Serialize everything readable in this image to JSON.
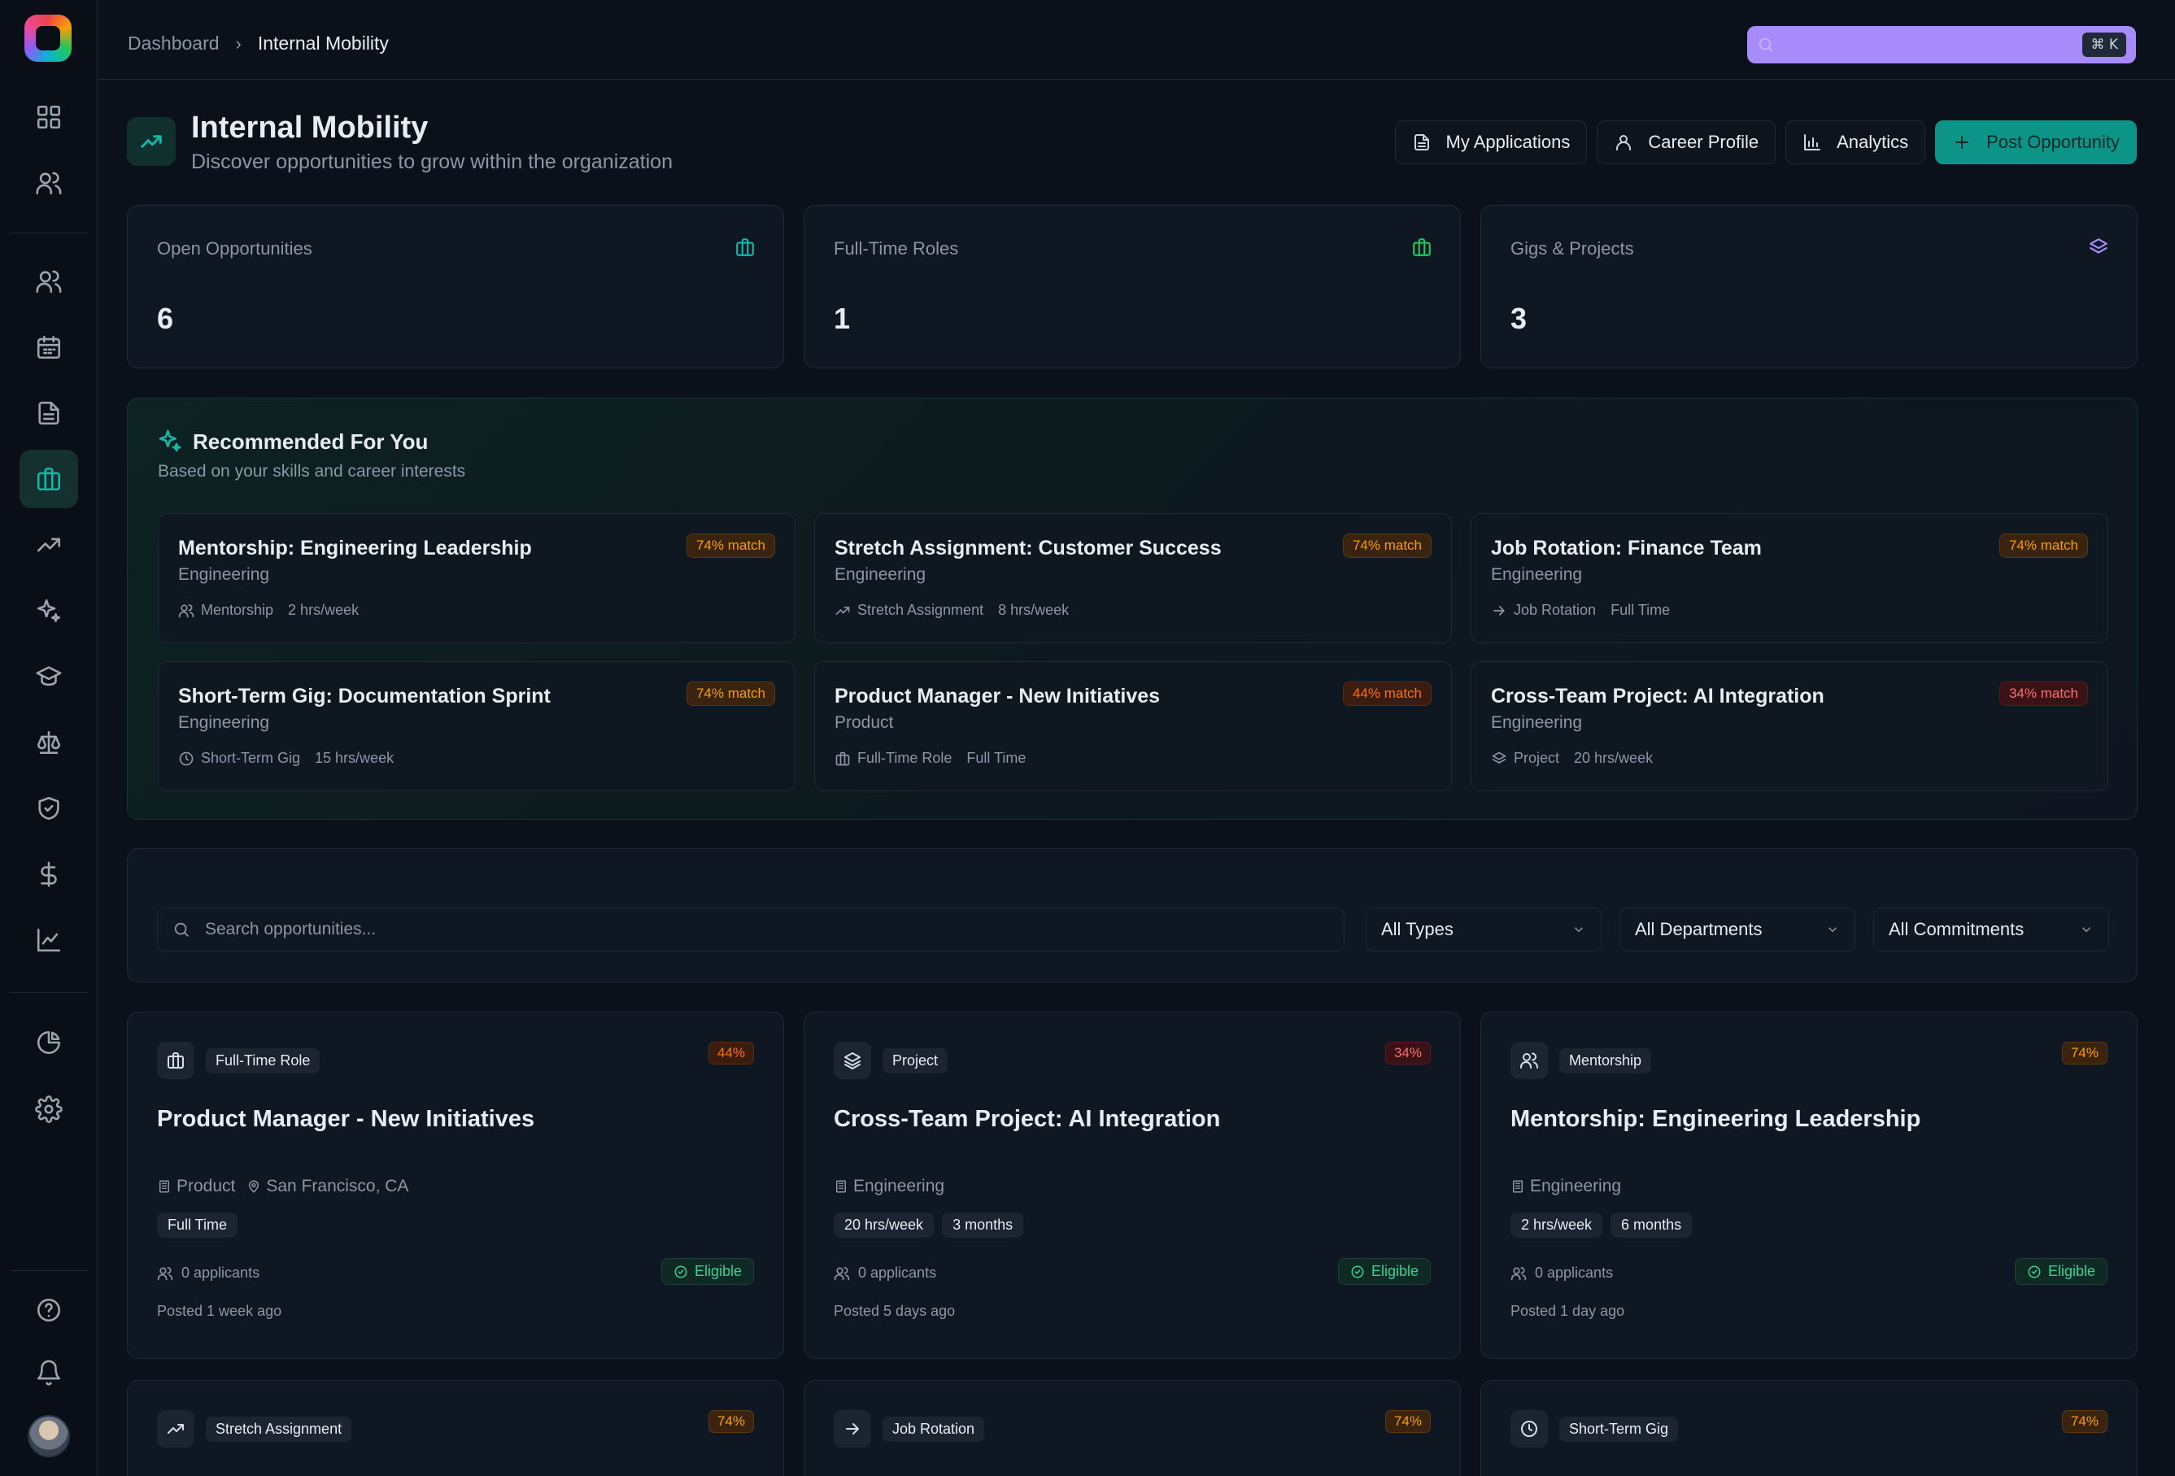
{
  "breadcrumb": {
    "root": "Dashboard",
    "current": "Internal Mobility"
  },
  "search_top": {
    "shortcut": "⌘ K"
  },
  "header": {
    "title": "Internal Mobility",
    "subtitle": "Discover opportunities to grow within the organization",
    "actions": [
      "My Applications",
      "Career Profile",
      "Analytics",
      "Post Opportunity"
    ]
  },
  "stats": [
    {
      "label": "Open Opportunities",
      "value": "6"
    },
    {
      "label": "Full-Time Roles",
      "value": "1"
    },
    {
      "label": "Gigs & Projects",
      "value": "3"
    }
  ],
  "recommended": {
    "title": "Recommended For You",
    "subtitle": "Based on your skills and career interests",
    "items": [
      {
        "title": "Mentorship: Engineering Leadership",
        "dept": "Engineering",
        "type": "Mentorship",
        "commitment": "2 hrs/week",
        "match": "74% match"
      },
      {
        "title": "Stretch Assignment: Customer Success",
        "dept": "Engineering",
        "type": "Stretch Assignment",
        "commitment": "8 hrs/week",
        "match": "74% match"
      },
      {
        "title": "Job Rotation: Finance Team",
        "dept": "Engineering",
        "type": "Job Rotation",
        "commitment": "Full Time",
        "match": "74% match"
      },
      {
        "title": "Short-Term Gig: Documentation Sprint",
        "dept": "Engineering",
        "type": "Short-Term Gig",
        "commitment": "15 hrs/week",
        "match": "74% match"
      },
      {
        "title": "Product Manager - New Initiatives",
        "dept": "Product",
        "type": "Full-Time Role",
        "commitment": "Full Time",
        "match": "44% match"
      },
      {
        "title": "Cross-Team Project: AI Integration",
        "dept": "Engineering",
        "type": "Project",
        "commitment": "20 hrs/week",
        "match": "34% match"
      }
    ]
  },
  "filters": {
    "search_placeholder": "Search opportunities...",
    "type": "All Types",
    "department": "All Departments",
    "commitment": "All Commitments"
  },
  "opportunities": [
    {
      "type": "Full-Time Role",
      "pct": "44%",
      "title": "Product Manager - New Initiatives",
      "dept": "Product",
      "location": "San Francisco, CA",
      "chips": [
        "Full Time"
      ],
      "applicants": "0 applicants",
      "status": "Eligible",
      "posted": "Posted 1 week ago"
    },
    {
      "type": "Project",
      "pct": "34%",
      "title": "Cross-Team Project: AI Integration",
      "dept": "Engineering",
      "chips": [
        "20 hrs/week",
        "3 months"
      ],
      "applicants": "0 applicants",
      "status": "Eligible",
      "posted": "Posted 5 days ago"
    },
    {
      "type": "Mentorship",
      "pct": "74%",
      "title": "Mentorship: Engineering Leadership",
      "dept": "Engineering",
      "chips": [
        "2 hrs/week",
        "6 months"
      ],
      "applicants": "0 applicants",
      "status": "Eligible",
      "posted": "Posted 1 day ago"
    },
    {
      "type": "Stretch Assignment",
      "pct": "74%"
    },
    {
      "type": "Job Rotation",
      "pct": "74%"
    },
    {
      "type": "Short-Term Gig",
      "pct": "74%"
    }
  ],
  "colors": {
    "accent": "#14b8a6",
    "search": "#a78bfa",
    "orange": "#f59e0b",
    "red": "#ef4444",
    "background": "#0b111a"
  }
}
